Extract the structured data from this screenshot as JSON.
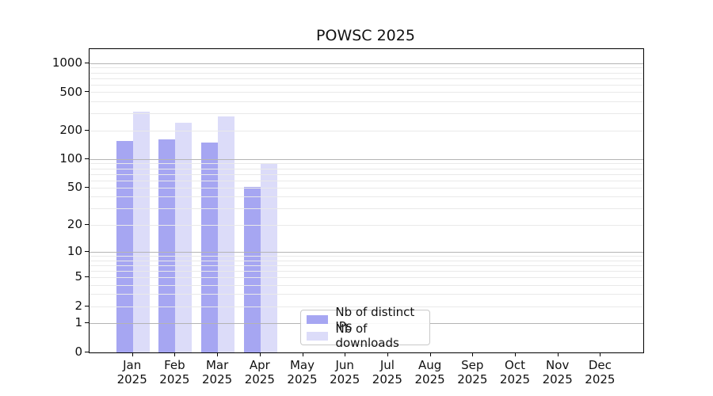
{
  "title": "POWSC 2025",
  "colors": {
    "ips_bar": "#a6a6f2",
    "downloads_bar": "#dcdcf9",
    "major_grid": "#b4b4b4",
    "minor_grid": "#e9e9e9",
    "axis": "#000000",
    "text": "#111111"
  },
  "legend": {
    "items": [
      {
        "label": "Nb of distinct IPs",
        "series": "ips"
      },
      {
        "label": "Nb of downloads",
        "series": "downloads"
      }
    ]
  },
  "chart_data": {
    "type": "bar",
    "title": "POWSC 2025",
    "categories": [
      "Jan 2025",
      "Feb 2025",
      "Mar 2025",
      "Apr 2025",
      "May 2025",
      "Jun 2025",
      "Jul 2025",
      "Aug 2025",
      "Sep 2025",
      "Oct 2025",
      "Nov 2025",
      "Dec 2025"
    ],
    "series": [
      {
        "name": "Nb of distinct IPs",
        "color_key": "ips_bar",
        "values": [
          155,
          161,
          150,
          51,
          null,
          null,
          null,
          null,
          null,
          null,
          null,
          null
        ]
      },
      {
        "name": "Nb of downloads",
        "color_key": "downloads_bar",
        "values": [
          317,
          241,
          283,
          92,
          null,
          null,
          null,
          null,
          null,
          null,
          null,
          null
        ]
      }
    ],
    "xlabel": "",
    "ylabel": "",
    "yscale": "log1p",
    "ylim": [
      0,
      1416
    ],
    "yticks": [
      0,
      1,
      2,
      5,
      10,
      20,
      50,
      100,
      200,
      500,
      1000
    ],
    "major_gridlines": [
      1,
      10,
      100,
      1000
    ],
    "minor_gridlines": [
      2,
      3,
      4,
      5,
      6,
      7,
      8,
      9,
      20,
      30,
      40,
      50,
      60,
      70,
      80,
      90,
      200,
      300,
      400,
      500,
      600,
      700,
      800,
      900
    ],
    "grid": true,
    "legend_position": "lower center"
  }
}
